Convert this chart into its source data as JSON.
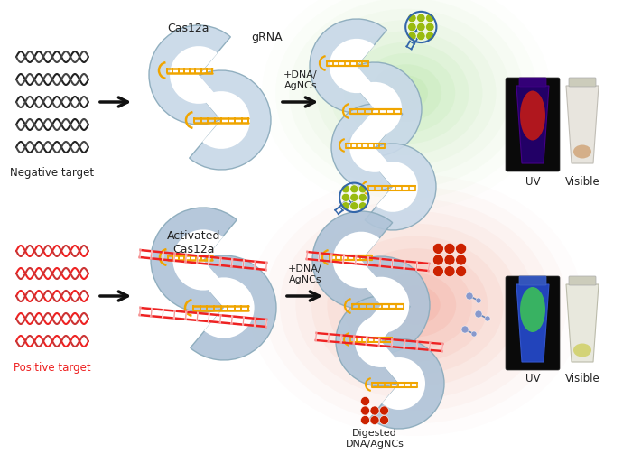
{
  "bg_color": "#ffffff",
  "top_labels": {
    "cas12a": "Cas12a",
    "grna": "gRNA",
    "dna_agncs_top": "+DNA/\nAgNCs",
    "negative_target": "Negative target",
    "uv_top": "UV",
    "visible_top": "Visible"
  },
  "bottom_labels": {
    "activated_cas12a": "Activated\nCas12a",
    "dna_agncs_bot": "+DNA/\nAgNCs",
    "positive_target": "Positive target",
    "digested": "Digested\nDNA/AgNCs",
    "uv_bot": "UV",
    "visible_bot": "Visible"
  },
  "protein_color": "#c8d8e8",
  "protein_edge": "#8aaabb",
  "rna_color": "#f0a500",
  "dna_black": "#222222",
  "dna_red": "#ee2222",
  "np_green": "#99bb11",
  "np_red": "#cc2200",
  "np_border_blue": "#3366aa",
  "arrow_color": "#111111"
}
